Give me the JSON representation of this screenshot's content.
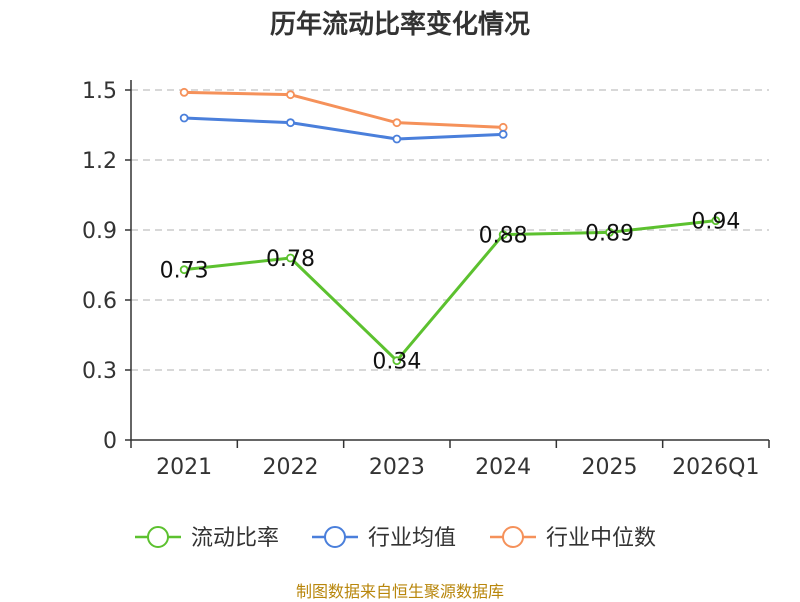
{
  "chart_data": {
    "type": "line",
    "title": "历年流动比率变化情况",
    "categories": [
      "2021",
      "2022",
      "2023",
      "2024",
      "2025",
      "2026Q1"
    ],
    "ylim": [
      0,
      1.5
    ],
    "yticks": [
      "0",
      "0.3",
      "0.6",
      "0.9",
      "1.2",
      "1.5"
    ],
    "ytick_values": [
      0,
      0.3,
      0.6,
      0.9,
      1.2,
      1.5
    ],
    "grid": true,
    "series": [
      {
        "name": "流动比率",
        "color": "#5cc12f",
        "values": [
          0.73,
          0.78,
          0.34,
          0.88,
          0.89,
          0.94
        ],
        "labels": [
          "0.73",
          "0.78",
          "0.34",
          "0.88",
          "0.89",
          "0.94"
        ],
        "show_labels": true
      },
      {
        "name": "行业均值",
        "color": "#4a7fdb",
        "values": [
          1.38,
          1.36,
          1.29,
          1.31,
          null,
          null
        ],
        "show_labels": false
      },
      {
        "name": "行业中位数",
        "color": "#f5915a",
        "values": [
          1.49,
          1.48,
          1.36,
          1.34,
          null,
          null
        ],
        "show_labels": false
      }
    ],
    "legend_position": "bottom"
  },
  "source": "制图数据来自恒生聚源数据库"
}
